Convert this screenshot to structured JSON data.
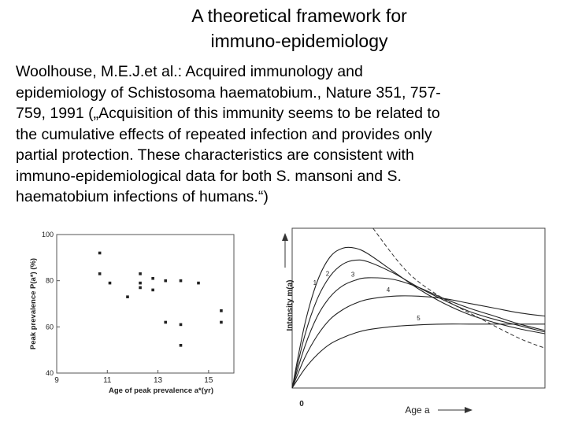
{
  "slide": {
    "title_lines": [
      "A theoretical framework for",
      "immuno-epidemiology"
    ],
    "body_lines": [
      "Woolhouse, M.E.J.et al.: Acquired immunology and",
      "epidemiology of Schistosoma haematobium., Nature 351, 757-",
      "759, 1991 („Acquisition of this immunity seems to be related to",
      "the cumulative effects of repeated infection and provides only",
      "partial protection. These characteristics are consistent with",
      "immuno-epidemiological data for both S. mansoni and S.",
      "haematobium infections of humans.“)"
    ]
  },
  "chart_data": [
    {
      "type": "scatter",
      "title": "",
      "xlabel": "Age of peak prevalence  a*(yr)",
      "ylabel": "Peak prevalence P(a*) (%)",
      "xlim": [
        9,
        16
      ],
      "ylim": [
        40,
        100
      ],
      "xticks": [
        "9",
        "11",
        "13",
        "15"
      ],
      "yticks": [
        "40",
        "60",
        "80",
        "100"
      ],
      "points": [
        {
          "x": 10.7,
          "y": 92
        },
        {
          "x": 10.7,
          "y": 83
        },
        {
          "x": 11.1,
          "y": 79
        },
        {
          "x": 11.8,
          "y": 73
        },
        {
          "x": 12.3,
          "y": 83
        },
        {
          "x": 12.3,
          "y": 79
        },
        {
          "x": 12.3,
          "y": 77
        },
        {
          "x": 12.8,
          "y": 81
        },
        {
          "x": 12.8,
          "y": 76
        },
        {
          "x": 13.3,
          "y": 80
        },
        {
          "x": 13.3,
          "y": 62
        },
        {
          "x": 13.9,
          "y": 80
        },
        {
          "x": 13.9,
          "y": 61
        },
        {
          "x": 13.9,
          "y": 52
        },
        {
          "x": 14.6,
          "y": 79
        },
        {
          "x": 15.5,
          "y": 67
        },
        {
          "x": 15.5,
          "y": 62
        }
      ]
    },
    {
      "type": "line",
      "title": "",
      "xlabel": "Age  a",
      "ylabel": "Intensity  m(a)",
      "origin_label": "0",
      "xlim": [
        0,
        10
      ],
      "ylim": [
        0,
        10
      ],
      "x": [
        0,
        0.5,
        1,
        1.5,
        2,
        2.5,
        3,
        4,
        5,
        6,
        7,
        8,
        9,
        10
      ],
      "series": [
        {
          "name": "1",
          "values": [
            0,
            4.0,
            6.7,
            8.2,
            8.75,
            8.75,
            8.4,
            7.3,
            6.2,
            5.3,
            4.6,
            4.1,
            3.7,
            3.4
          ]
        },
        {
          "name": "2",
          "values": [
            0,
            3.3,
            5.6,
            7.0,
            7.75,
            8.0,
            7.9,
            7.2,
            6.3,
            5.5,
            4.8,
            4.3,
            3.9,
            3.5
          ]
        },
        {
          "name": "3",
          "values": [
            0,
            2.6,
            4.5,
            5.7,
            6.4,
            6.75,
            6.9,
            6.8,
            6.3,
            5.6,
            5.0,
            4.5,
            4.0,
            3.6
          ]
        },
        {
          "name": "4",
          "values": [
            0,
            1.9,
            3.3,
            4.3,
            4.9,
            5.3,
            5.55,
            5.75,
            5.75,
            5.6,
            5.3,
            5.0,
            4.7,
            4.5
          ]
        },
        {
          "name": "5",
          "values": [
            0,
            1.2,
            2.1,
            2.75,
            3.15,
            3.45,
            3.65,
            3.85,
            3.95,
            4.0,
            4.0,
            4.0,
            4.0,
            4.0
          ]
        }
      ],
      "dashed_envelope": {
        "x": [
          3.2,
          4.0,
          4.6,
          5.3,
          6.3,
          7.5,
          9.0,
          10.0
        ],
        "values": [
          10.0,
          8.3,
          7.2,
          6.3,
          5.3,
          4.3,
          3.1,
          2.5
        ]
      }
    }
  ]
}
